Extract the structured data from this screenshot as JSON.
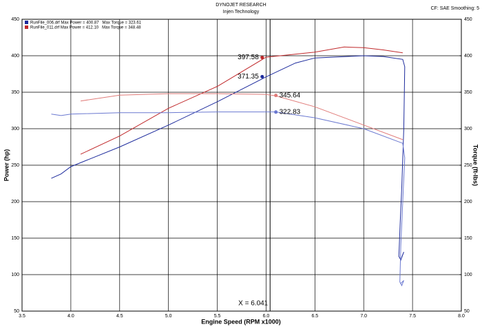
{
  "chart_data": {
    "type": "line",
    "title": "DYNOJET RESEARCH",
    "subtitle": "Injen Technology",
    "corner_note": "CF: SAE  Smoothing: 5",
    "x_label": "Engine Speed (RPM x1000)",
    "y_label": "Power (hp)",
    "y2_label": "Torque (ft-lbs)",
    "grid": true,
    "legend": "top-left",
    "xlim": [
      3.5,
      8.0
    ],
    "xticks": [
      3.5,
      {
        "value": 4,
        "label": "4.0"
      },
      4.5,
      {
        "value": 5,
        "label": "5.0"
      },
      5.5,
      {
        "value": 6,
        "label": "6.0"
      },
      6.5,
      {
        "value": 7,
        "label": "7.0"
      },
      7.5,
      {
        "value": 8,
        "label": "8.0"
      }
    ],
    "ylim": [
      50,
      450
    ],
    "yticks": [
      50,
      100,
      150,
      200,
      250,
      300,
      350,
      400,
      450
    ],
    "y2lim": [
      50,
      450
    ],
    "y2ticks": [
      50,
      100,
      150,
      200,
      250,
      300,
      350,
      400,
      450
    ],
    "series": [
      {
        "name": "RunFile_006.drf Max Power = 400.87   Max Torque = 323.61",
        "color": "#1c2a9c",
        "x": [
          3.8,
          3.9,
          4.0,
          4.5,
          5.0,
          5.5,
          6.0,
          6.3,
          6.5,
          7.0,
          7.2,
          7.4,
          7.42,
          7.41,
          7.39,
          7.37,
          7.36,
          7.38,
          7.41,
          7.39
        ],
        "values": [
          232,
          238,
          248,
          275,
          305,
          337,
          371,
          390,
          397,
          400,
          399,
          395,
          385,
          300,
          220,
          160,
          125,
          120,
          131,
          124
        ]
      },
      {
        "name": "RunFile_011.drf Max Power = 412.10   Max Torque = 348.48",
        "color": "#c0282a",
        "x": [
          4.1,
          4.5,
          5.0,
          5.5,
          6.0,
          6.5,
          6.8,
          7.0,
          7.2,
          7.4
        ],
        "values": [
          265,
          290,
          328,
          358,
          398,
          405,
          412,
          411,
          408,
          404
        ]
      },
      {
        "color": "#6a78d0",
        "axis": "y2",
        "x": [
          3.8,
          3.9,
          4.0,
          4.5,
          5.0,
          5.5,
          6.0,
          6.1,
          6.5,
          7.0,
          7.4,
          7.42,
          7.4,
          7.38,
          7.37,
          7.39,
          7.41,
          7.38
        ],
        "values": [
          320,
          318,
          320,
          322,
          322,
          323,
          323,
          323,
          315,
          300,
          280,
          260,
          200,
          140,
          90,
          85,
          92,
          88
        ]
      },
      {
        "color": "#e07a78",
        "axis": "y2",
        "x": [
          4.1,
          4.5,
          5.0,
          5.5,
          6.0,
          6.1,
          6.5,
          7.0,
          7.4
        ],
        "values": [
          338,
          346,
          348,
          348,
          347,
          345,
          330,
          305,
          285
        ]
      }
    ],
    "cursor": {
      "x": 6.041,
      "label": "X = 6.041"
    },
    "markers": [
      {
        "x": 5.96,
        "value": 397.58,
        "color": "#c0282a"
      },
      {
        "x": 5.96,
        "value": 371.35,
        "color": "#1c2a9c"
      },
      {
        "x": 6.1,
        "value": 345.64,
        "color": "#e07a78",
        "axis": "y2"
      },
      {
        "x": 6.1,
        "value": 322.83,
        "color": "#6a78d0",
        "axis": "y2"
      }
    ]
  }
}
